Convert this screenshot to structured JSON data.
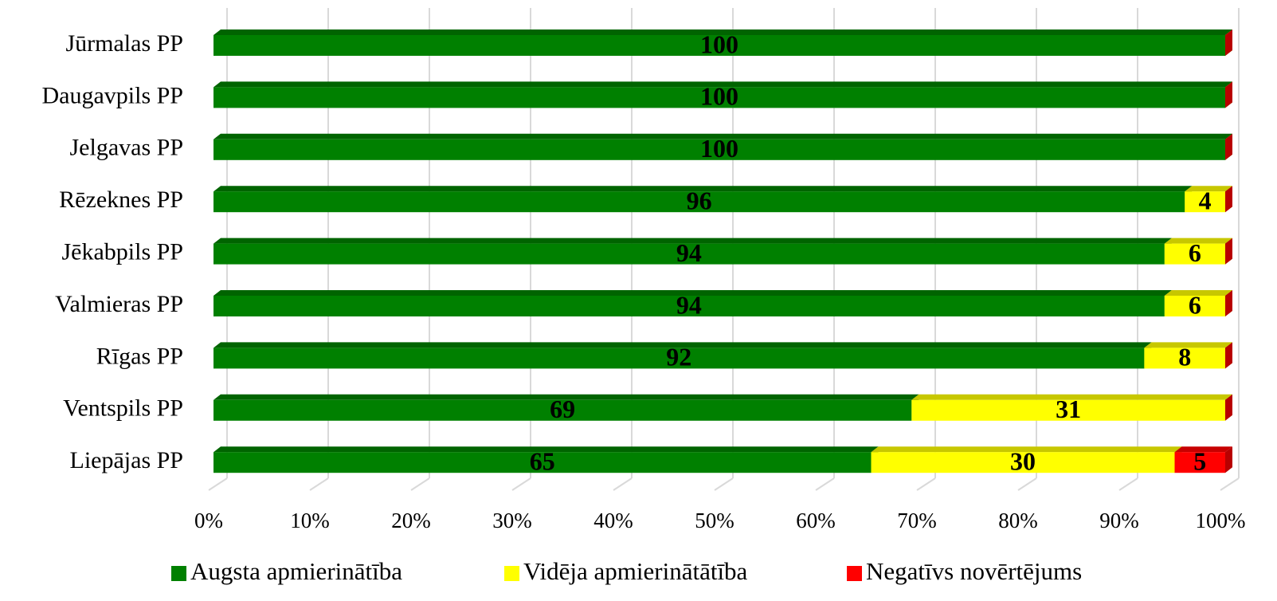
{
  "chart_data": {
    "type": "bar",
    "orientation": "horizontal",
    "stacked": true,
    "categories": [
      "Jūrmalas  PP",
      "Daugavpils PP",
      "Jelgavas PP",
      "Rēzeknes PP",
      "Jēkabpils PP",
      "Valmieras PP",
      "Rīgas PP",
      "Ventspils PP",
      "Liepājas PP"
    ],
    "series": [
      {
        "name": "Augsta apmierinātība",
        "color": "#008000",
        "values": [
          100,
          100,
          100,
          96,
          94,
          94,
          92,
          69,
          65
        ]
      },
      {
        "name": "Vidēja apmierinātātība",
        "color": "#ffff00",
        "values": [
          0,
          0,
          0,
          4,
          6,
          6,
          8,
          31,
          30
        ]
      },
      {
        "name": "Negatīvs novērtējums",
        "color": "#ff0000",
        "values": [
          0,
          0,
          0,
          0,
          0,
          0,
          0,
          0,
          5
        ]
      }
    ],
    "xlim": [
      0,
      100
    ],
    "xticks": [
      {
        "value": 0,
        "label": "0%"
      },
      {
        "value": 10,
        "label": "10%"
      },
      {
        "value": 20,
        "label": "20%"
      },
      {
        "value": 30,
        "label": "30%"
      },
      {
        "value": 40,
        "label": "40%"
      },
      {
        "value": 50,
        "label": "50%"
      },
      {
        "value": 60,
        "label": "60%"
      },
      {
        "value": 70,
        "label": "70%"
      },
      {
        "value": 80,
        "label": "80%"
      },
      {
        "value": 90,
        "label": "90%"
      },
      {
        "value": 100,
        "label": "100%"
      }
    ],
    "grid": true,
    "legend": "bottom"
  }
}
